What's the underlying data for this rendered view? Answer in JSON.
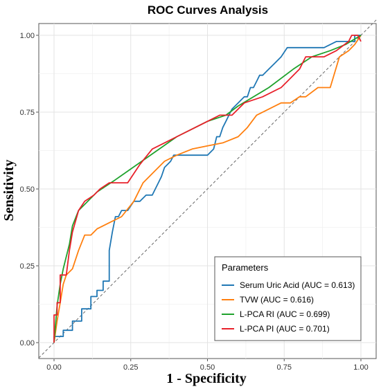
{
  "chart_data": {
    "type": "line",
    "title": "ROC Curves Analysis",
    "xlabel": "1 - Specificity",
    "ylabel": "Sensitivity",
    "xlim": [
      0,
      1
    ],
    "ylim": [
      0,
      1
    ],
    "xticks": [
      "0.00",
      "0.25",
      "0.50",
      "0.75",
      "1.00"
    ],
    "yticks": [
      "0.00",
      "0.25",
      "0.50",
      "0.75",
      "1.00"
    ],
    "grid": true,
    "legend_title": "Parameters",
    "legend_position": "bottom-right",
    "reference_line": {
      "style": "dashed",
      "color": "#666666",
      "from": [
        0,
        0
      ],
      "to": [
        1,
        1
      ]
    },
    "series": [
      {
        "name": "Serum Uric Acid (AUC = 0.613)",
        "color": "#1f77b4",
        "x": [
          0.0,
          0.0,
          0.03,
          0.03,
          0.06,
          0.06,
          0.09,
          0.09,
          0.12,
          0.12,
          0.14,
          0.14,
          0.16,
          0.16,
          0.18,
          0.18,
          0.19,
          0.2,
          0.21,
          0.22,
          0.24,
          0.26,
          0.28,
          0.3,
          0.32,
          0.34,
          0.35,
          0.36,
          0.37,
          0.38,
          0.39,
          0.4,
          0.42,
          0.44,
          0.46,
          0.48,
          0.5,
          0.52,
          0.53,
          0.54,
          0.55,
          0.56,
          0.57,
          0.58,
          0.6,
          0.62,
          0.63,
          0.64,
          0.65,
          0.66,
          0.67,
          0.68,
          0.7,
          0.72,
          0.74,
          0.76,
          0.8,
          0.84,
          0.88,
          0.92,
          0.96,
          0.98,
          0.98,
          1.0
        ],
        "y": [
          0.0,
          0.02,
          0.02,
          0.04,
          0.04,
          0.07,
          0.07,
          0.11,
          0.11,
          0.15,
          0.15,
          0.17,
          0.17,
          0.2,
          0.2,
          0.3,
          0.36,
          0.41,
          0.41,
          0.43,
          0.43,
          0.46,
          0.46,
          0.48,
          0.48,
          0.52,
          0.54,
          0.57,
          0.58,
          0.59,
          0.61,
          0.61,
          0.61,
          0.61,
          0.61,
          0.61,
          0.61,
          0.63,
          0.67,
          0.67,
          0.7,
          0.72,
          0.74,
          0.76,
          0.78,
          0.8,
          0.8,
          0.83,
          0.83,
          0.85,
          0.87,
          0.87,
          0.89,
          0.91,
          0.93,
          0.96,
          0.96,
          0.96,
          0.96,
          0.98,
          0.98,
          0.98,
          1.0,
          1.0
        ]
      },
      {
        "name": "TVW (AUC = 0.616)",
        "color": "#ff7f0e",
        "x": [
          0.0,
          0.01,
          0.02,
          0.03,
          0.04,
          0.06,
          0.08,
          0.1,
          0.12,
          0.14,
          0.18,
          0.22,
          0.26,
          0.29,
          0.32,
          0.36,
          0.4,
          0.45,
          0.5,
          0.55,
          0.6,
          0.63,
          0.66,
          0.7,
          0.74,
          0.77,
          0.8,
          0.82,
          0.86,
          0.9,
          0.93,
          0.96,
          0.98,
          1.0
        ],
        "y": [
          0.0,
          0.07,
          0.13,
          0.19,
          0.22,
          0.24,
          0.3,
          0.35,
          0.35,
          0.37,
          0.39,
          0.41,
          0.46,
          0.52,
          0.55,
          0.59,
          0.61,
          0.63,
          0.64,
          0.65,
          0.67,
          0.7,
          0.74,
          0.76,
          0.78,
          0.78,
          0.8,
          0.8,
          0.83,
          0.83,
          0.93,
          0.95,
          0.97,
          1.0
        ]
      },
      {
        "name": "L-PCA RI (AUC = 0.699)",
        "color": "#1fa22c",
        "x": [
          0.0,
          0.01,
          0.02,
          0.03,
          0.04,
          0.05,
          0.06,
          0.08,
          0.1,
          0.14,
          0.2,
          0.3,
          0.4,
          0.5,
          0.56,
          0.6,
          0.7,
          0.78,
          0.84,
          0.9,
          0.95,
          1.0
        ],
        "y": [
          0.0,
          0.12,
          0.19,
          0.24,
          0.28,
          0.32,
          0.38,
          0.43,
          0.45,
          0.49,
          0.53,
          0.6,
          0.67,
          0.72,
          0.74,
          0.77,
          0.83,
          0.89,
          0.93,
          0.95,
          0.97,
          1.0
        ]
      },
      {
        "name": "L-PCA PI (AUC = 0.701)",
        "color": "#e8202a",
        "x": [
          0.0,
          0.0,
          0.01,
          0.01,
          0.02,
          0.02,
          0.04,
          0.05,
          0.06,
          0.08,
          0.1,
          0.13,
          0.15,
          0.18,
          0.2,
          0.24,
          0.28,
          0.32,
          0.36,
          0.4,
          0.46,
          0.5,
          0.54,
          0.58,
          0.62,
          0.68,
          0.74,
          0.76,
          0.78,
          0.8,
          0.82,
          0.86,
          0.88,
          0.92,
          0.96,
          0.97,
          0.99,
          1.0
        ],
        "y": [
          0.0,
          0.09,
          0.09,
          0.13,
          0.13,
          0.22,
          0.22,
          0.3,
          0.36,
          0.43,
          0.46,
          0.48,
          0.5,
          0.52,
          0.52,
          0.52,
          0.58,
          0.63,
          0.65,
          0.67,
          0.7,
          0.72,
          0.74,
          0.74,
          0.78,
          0.8,
          0.83,
          0.85,
          0.87,
          0.89,
          0.93,
          0.93,
          0.93,
          0.95,
          0.98,
          1.0,
          1.0,
          0.98
        ]
      }
    ]
  }
}
